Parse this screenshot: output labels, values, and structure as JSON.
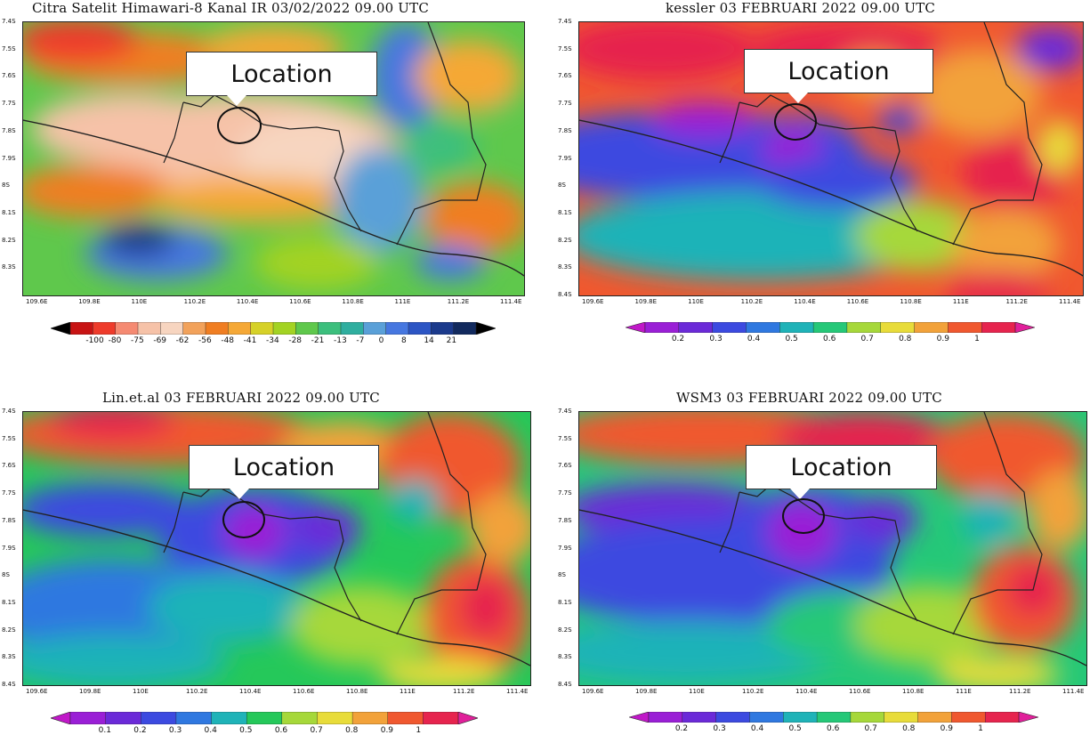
{
  "panels": [
    {
      "title": "Citra Satelit Himawari-8 Kanal IR 03/02/2022 09.00 UTC",
      "callout": "Location",
      "lat_labels": [
        "7.4S",
        "7.5S",
        "7.6S",
        "7.7S",
        "7.8S",
        "7.9S",
        "8S",
        "8.1S",
        "8.2S",
        "8.3S"
      ],
      "lon_labels": [
        "109.6E",
        "109.8E",
        "110E",
        "110.2E",
        "110.4E",
        "110.6E",
        "110.8E",
        "111E",
        "111.2E",
        "111.4E"
      ],
      "colorbar_labels": [
        "-100",
        "-80",
        "-75",
        "-69",
        "-62",
        "-56",
        "-48",
        "-41",
        "-34",
        "-28",
        "-21",
        "-13",
        "-7",
        "0",
        "8",
        "14",
        "21"
      ],
      "colorbar_colors": [
        "#c81414",
        "#ee3b2b",
        "#f58a72",
        "#f6c2a8",
        "#f7d5c0",
        "#f2a25b",
        "#f07e22",
        "#f5a836",
        "#d6d128",
        "#a3d323",
        "#5fc84c",
        "#3cbf7d",
        "#2fae9f",
        "#5aa0d8",
        "#4677e0",
        "#2c55c4",
        "#1b3a8c",
        "#122a5e"
      ],
      "colorbar_ends": [
        "#000000",
        "#000000"
      ]
    },
    {
      "title": "kessler 03 FEBRUARI 2022 09.00 UTC",
      "callout": "Location",
      "lat_labels": [
        "7.4S",
        "7.5S",
        "7.6S",
        "7.7S",
        "7.8S",
        "7.9S",
        "8S",
        "8.1S",
        "8.2S",
        "8.3S",
        "8.4S"
      ],
      "lon_labels": [
        "109.6E",
        "109.8E",
        "110E",
        "110.2E",
        "110.4E",
        "110.6E",
        "110.8E",
        "111E",
        "111.2E",
        "111.4E"
      ],
      "colorbar_labels": [
        "0.2",
        "0.3",
        "0.4",
        "0.5",
        "0.6",
        "0.7",
        "0.8",
        "0.9",
        "1"
      ],
      "colorbar_colors": [
        "#9a1fd6",
        "#6b2ad8",
        "#3c4ae0",
        "#2f78e0",
        "#1fb3b8",
        "#25c878",
        "#a6d83a",
        "#e8dc3a",
        "#f2a23a",
        "#f0582f",
        "#e6244e"
      ],
      "colorbar_ends": [
        "#c018c8",
        "#e0209a"
      ]
    },
    {
      "title": "Lin.et.al 03 FEBRUARI 2022 09.00 UTC",
      "callout": "Location",
      "lat_labels": [
        "7.4S",
        "7.5S",
        "7.6S",
        "7.7S",
        "7.8S",
        "7.9S",
        "8S",
        "8.1S",
        "8.2S",
        "8.3S",
        "8.4S"
      ],
      "lon_labels": [
        "109.6E",
        "109.8E",
        "110E",
        "110.2E",
        "110.4E",
        "110.6E",
        "110.8E",
        "111E",
        "111.2E",
        "111.4E"
      ],
      "colorbar_labels": [
        "0.1",
        "0.2",
        "0.3",
        "0.4",
        "0.5",
        "0.6",
        "0.7",
        "0.8",
        "0.9",
        "1"
      ],
      "colorbar_colors": [
        "#9a1fd6",
        "#6b2ad8",
        "#3c4ae0",
        "#2f78e0",
        "#1fb3b8",
        "#25c85a",
        "#a6d83a",
        "#e8dc3a",
        "#f2a23a",
        "#f0582f",
        "#e6244e"
      ],
      "colorbar_ends": [
        "#c018c8",
        "#e0209a"
      ]
    },
    {
      "title": "WSM3 03 FEBRUARI 2022 09.00 UTC",
      "callout": "Location",
      "lat_labels": [
        "7.4S",
        "7.5S",
        "7.6S",
        "7.7S",
        "7.8S",
        "7.9S",
        "8S",
        "8.1S",
        "8.2S",
        "8.3S",
        "8.4S"
      ],
      "lon_labels": [
        "109.6E",
        "109.8E",
        "110E",
        "110.2E",
        "110.4E",
        "110.6E",
        "110.8E",
        "111E",
        "111.2E",
        "111.4E"
      ],
      "colorbar_labels": [
        "0.2",
        "0.3",
        "0.4",
        "0.5",
        "0.6",
        "0.7",
        "0.8",
        "0.9",
        "1"
      ],
      "colorbar_colors": [
        "#9a1fd6",
        "#6b2ad8",
        "#3c4ae0",
        "#2f78e0",
        "#1fb3b8",
        "#25c878",
        "#a6d83a",
        "#e8dc3a",
        "#f2a23a",
        "#f0582f",
        "#e6244e"
      ],
      "colorbar_ends": [
        "#c018c8",
        "#e0209a"
      ]
    }
  ]
}
